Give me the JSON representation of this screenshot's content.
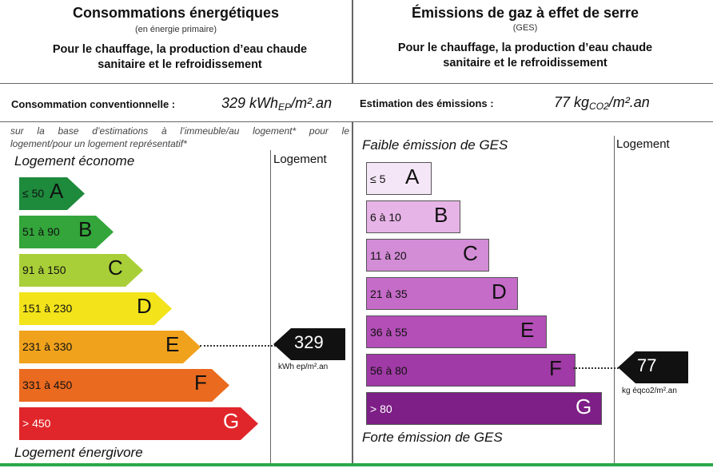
{
  "left_header": {
    "title": "Consommations énergétiques",
    "subtitle": "(en énergie primaire)",
    "desc_line1": "Pour le chauffage, la production d’eau chaude",
    "desc_line2": "sanitaire et le refroidissement"
  },
  "right_header": {
    "title": "Émissions de gaz à effet de serre",
    "subtitle": "(GES)",
    "desc_line1": "Pour le chauffage, la production d’eau chaude",
    "desc_line2": "sanitaire et le refroidissement"
  },
  "consumption": {
    "label": "Consommation conventionnelle :",
    "value": "329 kWh",
    "sub": "EP",
    "unit": "/m².an"
  },
  "emission": {
    "label": "Estimation des émissions :",
    "value": "77 kg",
    "sub": "CO2",
    "unit": "/m².an"
  },
  "energy_note": {
    "line1": "sur la base d’estimations à l’immeuble/au logement* pour le",
    "line2": "logement/pour un logement représentatif*"
  },
  "energy_scale": {
    "top_label": "Logement économe",
    "bottom_label": "Logement énergivore",
    "column_header": "Logement",
    "classes": [
      {
        "range": "≤ 50",
        "letter": "A",
        "color": "#1e8a3c"
      },
      {
        "range": "51 à 90",
        "letter": "B",
        "color": "#33a53a"
      },
      {
        "range": "91 à 150",
        "letter": "C",
        "color": "#a9cf38"
      },
      {
        "range": "151 à 230",
        "letter": "D",
        "color": "#f2e31b"
      },
      {
        "range": "231 à 330",
        "letter": "E",
        "color": "#f0a21c"
      },
      {
        "range": "331 à 450",
        "letter": "F",
        "color": "#ea6a1f"
      },
      {
        "range": "> 450",
        "letter": "G",
        "color": "#e0262a"
      }
    ],
    "current_value": "329",
    "current_class": "E",
    "current_unit": "kWh ep/m².an"
  },
  "ges_scale": {
    "top_label": "Faible émission de GES",
    "bottom_label": "Forte émission de GES",
    "column_header": "Logement",
    "classes": [
      {
        "range": "≤ 5",
        "letter": "A",
        "color": "#f5e6f7"
      },
      {
        "range": "6 à 10",
        "letter": "B",
        "color": "#e6b4e6"
      },
      {
        "range": "11 à 20",
        "letter": "C",
        "color": "#d38cd6"
      },
      {
        "range": "21 à 35",
        "letter": "D",
        "color": "#c56bc8"
      },
      {
        "range": "36 à 55",
        "letter": "E",
        "color": "#b34fb7"
      },
      {
        "range": "56 à 80",
        "letter": "F",
        "color": "#a03aa6"
      },
      {
        "range": "> 80",
        "letter": "G",
        "color": "#7d1f86"
      }
    ],
    "current_value": "77",
    "current_class": "F",
    "current_unit": "kg éqco2/m².an"
  }
}
